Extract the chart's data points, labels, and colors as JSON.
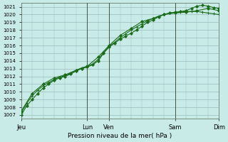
{
  "title": "Pression niveau de la mer( hPa )",
  "ylabel_values": [
    1007,
    1008,
    1009,
    1010,
    1011,
    1012,
    1013,
    1014,
    1015,
    1016,
    1017,
    1018,
    1019,
    1020,
    1021
  ],
  "ylim": [
    1006.5,
    1021.5
  ],
  "xlim": [
    0,
    108
  ],
  "background_color": "#c8ebe8",
  "grid_color": "#99bbbb",
  "grid_minor_color": "#b8d8d8",
  "line_color": "#1a6b1a",
  "day_ticks": [
    0,
    36,
    48,
    84,
    108
  ],
  "day_labels": [
    "Jeu",
    "Lun",
    "Ven",
    "Sam",
    "Dim"
  ],
  "series1_x": [
    0,
    3,
    6,
    9,
    12,
    15,
    18,
    21,
    24,
    27,
    30,
    33,
    36,
    39,
    42,
    45,
    48,
    51,
    54,
    57,
    60,
    63,
    66,
    69,
    72,
    75,
    78,
    81,
    84,
    87,
    90,
    93,
    96,
    99,
    102,
    105,
    108
  ],
  "series1_y": [
    1007.0,
    1008.2,
    1009.0,
    1009.8,
    1010.5,
    1011.0,
    1011.5,
    1011.8,
    1012.0,
    1012.3,
    1012.7,
    1013.0,
    1013.2,
    1013.5,
    1014.0,
    1015.0,
    1015.8,
    1016.3,
    1016.8,
    1017.2,
    1017.6,
    1018.0,
    1018.5,
    1019.0,
    1019.3,
    1019.7,
    1020.0,
    1020.2,
    1020.3,
    1020.4,
    1020.5,
    1020.8,
    1021.1,
    1021.2,
    1021.1,
    1020.9,
    1020.8
  ],
  "series2_x": [
    0,
    3,
    6,
    9,
    12,
    15,
    18,
    21,
    24,
    27,
    30,
    33,
    36,
    39,
    42,
    45,
    48,
    51,
    54,
    57,
    60,
    63,
    66,
    69,
    72,
    75,
    78,
    81,
    84,
    87,
    90,
    93,
    96,
    99,
    102,
    105,
    108
  ],
  "series2_y": [
    1007.3,
    1008.5,
    1009.5,
    1010.2,
    1010.8,
    1011.2,
    1011.6,
    1011.9,
    1012.1,
    1012.4,
    1012.8,
    1013.1,
    1013.3,
    1013.6,
    1014.2,
    1015.1,
    1015.9,
    1016.4,
    1017.0,
    1017.5,
    1018.0,
    1018.4,
    1018.8,
    1019.2,
    1019.5,
    1019.8,
    1020.0,
    1020.2,
    1020.3,
    1020.3,
    1020.4,
    1020.4,
    1020.4,
    1020.3,
    1020.2,
    1020.1,
    1020.0
  ],
  "series3_x": [
    0,
    6,
    12,
    18,
    24,
    30,
    36,
    42,
    48,
    54,
    60,
    66,
    72,
    78,
    84,
    90,
    96,
    102,
    108
  ],
  "series3_y": [
    1007.5,
    1009.8,
    1011.0,
    1011.8,
    1012.2,
    1012.8,
    1013.3,
    1014.5,
    1016.0,
    1017.3,
    1018.2,
    1019.1,
    1019.5,
    1020.0,
    1020.2,
    1020.3,
    1020.5,
    1020.8,
    1020.5
  ]
}
